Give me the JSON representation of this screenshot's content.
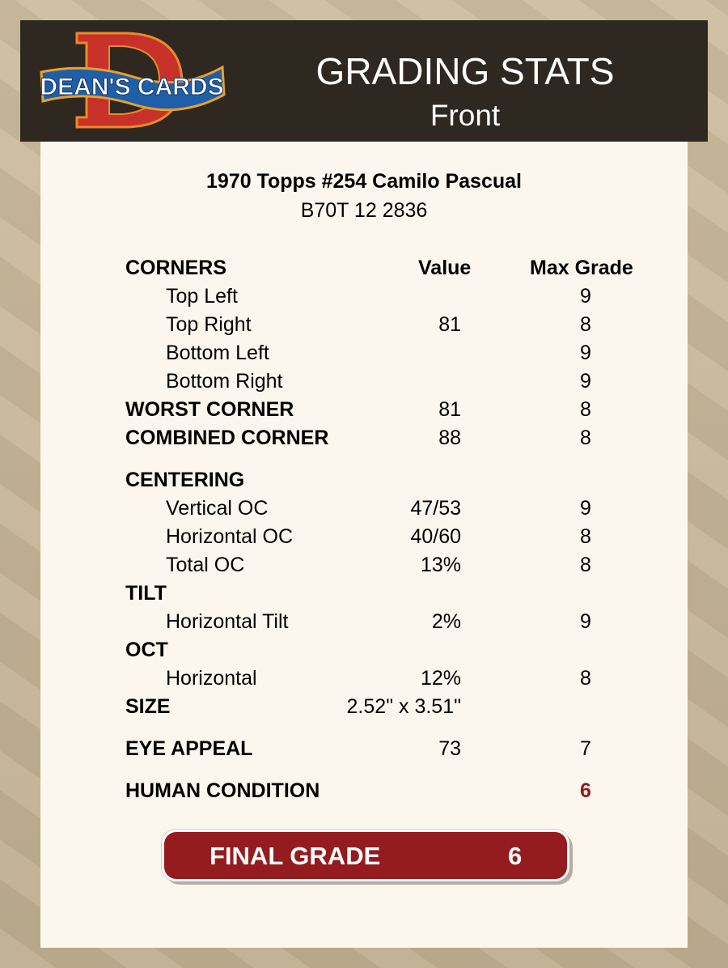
{
  "header": {
    "brand": "DEAN'S CARDS",
    "title": "GRADING STATS",
    "subtitle": "Front"
  },
  "card": {
    "name": "1970 Topps #254 Camilo Pascual",
    "cert": "B70T 12 2836"
  },
  "columns": {
    "value": "Value",
    "max": "Max Grade"
  },
  "rows": [
    {
      "label": "CORNERS",
      "value": "",
      "max": ""
    },
    {
      "label": "Top Left",
      "value": "",
      "max": "9"
    },
    {
      "label": "Top Right",
      "value": "81",
      "max": "8"
    },
    {
      "label": "Bottom Left",
      "value": "",
      "max": "9"
    },
    {
      "label": "Bottom Right",
      "value": "",
      "max": "9"
    },
    {
      "label": "WORST CORNER",
      "value": "81",
      "max": "8"
    },
    {
      "label": "COMBINED CORNER",
      "value": "88",
      "max": "8"
    },
    {
      "label": "CENTERING",
      "value": "",
      "max": ""
    },
    {
      "label": "Vertical OC",
      "value": "47/53",
      "max": "9"
    },
    {
      "label": "Horizontal OC",
      "value": "40/60",
      "max": "8"
    },
    {
      "label": "Total OC",
      "value": "13%",
      "max": "8"
    },
    {
      "label": "TILT",
      "value": "",
      "max": ""
    },
    {
      "label": "Horizontal Tilt",
      "value": "2%",
      "max": "9"
    },
    {
      "label": "OCT",
      "value": "",
      "max": ""
    },
    {
      "label": "Horizontal",
      "value": "12%",
      "max": "8"
    },
    {
      "label": "SIZE",
      "value": "2.52\" x 3.51\"",
      "max": ""
    },
    {
      "label": "EYE APPEAL",
      "value": "73",
      "max": "7"
    },
    {
      "label": "HUMAN CONDITION",
      "value": "",
      "max": "6"
    }
  ],
  "final": {
    "label": "FINAL GRADE",
    "value": "6"
  },
  "colors": {
    "header_bg": "#2e2821",
    "accent_red": "#941b1e",
    "panel": "#fcf7ee"
  }
}
